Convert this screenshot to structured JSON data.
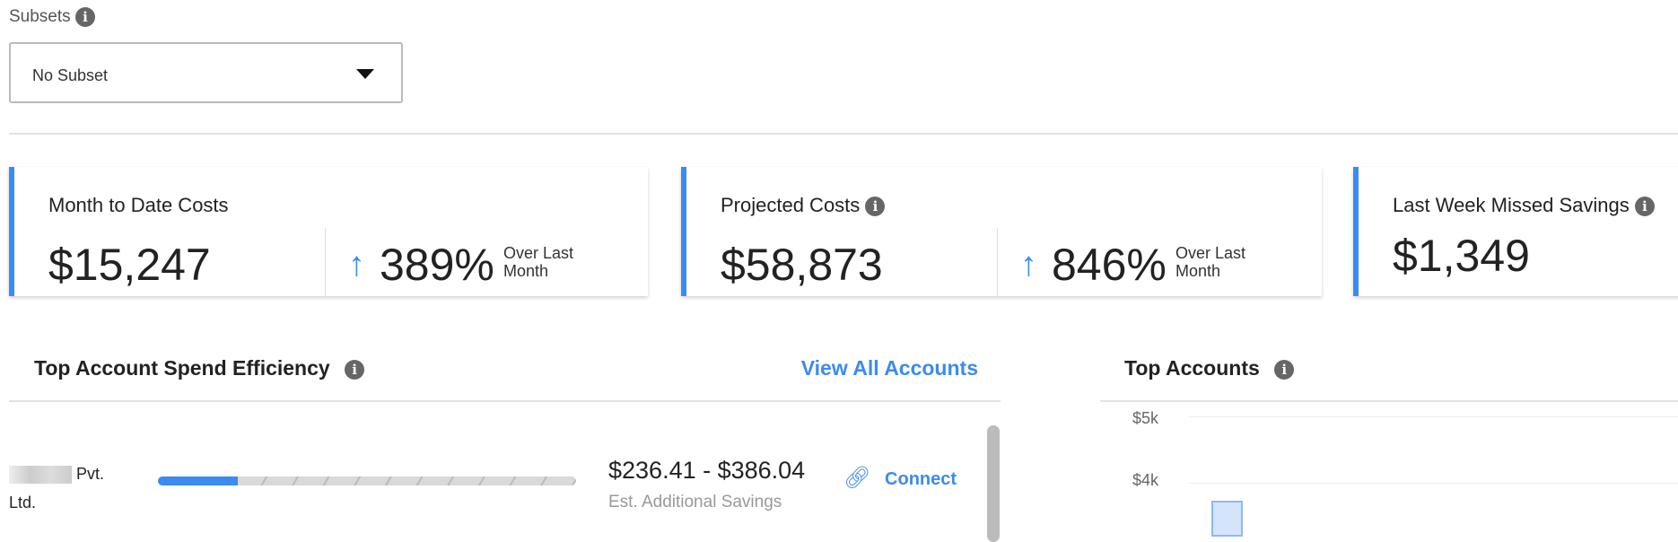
{
  "subsets": {
    "label": "Subsets",
    "selected": "No Subset"
  },
  "cards": [
    {
      "title": "Month to Date Costs",
      "value": "$15,247",
      "change": "389%",
      "change_label": "Over Last Month",
      "direction": "up"
    },
    {
      "title": "Projected Costs",
      "value": "$58,873",
      "change": "846%",
      "change_label": "Over Last Month",
      "direction": "up"
    },
    {
      "title": "Last Week Missed Savings",
      "value": "$1,349"
    }
  ],
  "efficiency": {
    "title": "Top Account Spend Efficiency",
    "view_all": "View All Accounts",
    "rows": [
      {
        "name": "Pvt. Ltd.",
        "efficiency_percent": 19,
        "savings": "$236.41 - $386.04",
        "savings_label": "Est. Additional Savings",
        "action": "Connect"
      }
    ]
  },
  "top_accounts": {
    "title": "Top Accounts",
    "y_ticks": [
      "$5k",
      "$4k"
    ]
  },
  "colors": {
    "accent": "#3b8bf0",
    "bar_fill": "#d4e4fb"
  }
}
